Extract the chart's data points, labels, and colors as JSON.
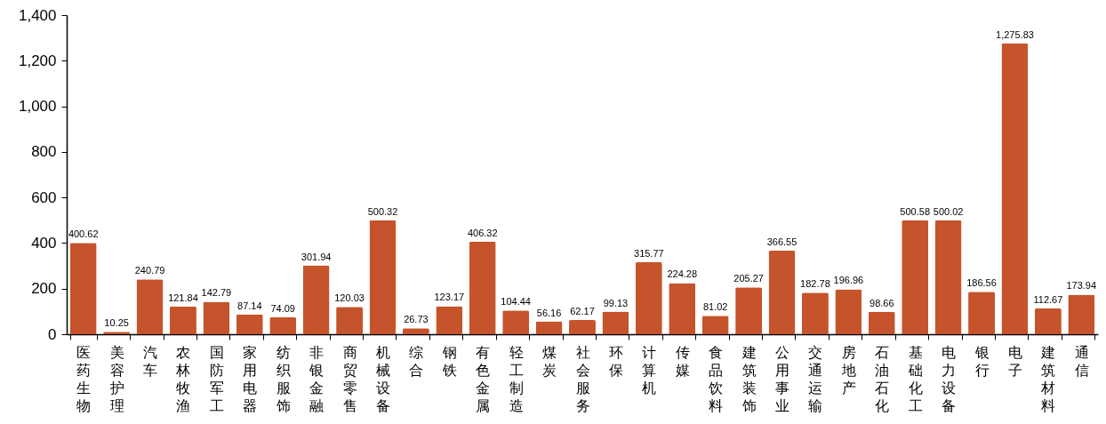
{
  "chart_data": {
    "type": "bar",
    "categories": [
      "医药生物",
      "美容护理",
      "汽车",
      "农林牧渔",
      "国防军工",
      "家用电器",
      "纺织服饰",
      "非银金融",
      "商贸零售",
      "机械设备",
      "综合",
      "钢铁",
      "有色金属",
      "轻工制造",
      "煤炭",
      "社会服务",
      "环保",
      "计算机",
      "传媒",
      "食品饮料",
      "建筑装饰",
      "公用事业",
      "交通运输",
      "房地产",
      "石油石化",
      "基础化工",
      "电力设备",
      "银行",
      "电子",
      "建筑材料",
      "通信"
    ],
    "values": [
      400.62,
      10.25,
      240.79,
      121.84,
      142.79,
      87.14,
      74.09,
      301.94,
      120.03,
      500.32,
      26.73,
      123.17,
      406.32,
      104.44,
      56.16,
      62.17,
      99.13,
      315.77,
      224.28,
      81.02,
      205.27,
      366.55,
      182.78,
      196.96,
      98.66,
      500.58,
      500.02,
      186.56,
      1275.83,
      112.67,
      173.94
    ],
    "value_labels": [
      "400.62",
      "10.25",
      "240.79",
      "121.84",
      "142.79",
      "87.14",
      "74.09",
      "301.94",
      "120.03",
      "500.32",
      "26.73",
      "123.17",
      "406.32",
      "104.44",
      "56.16",
      "62.17",
      "99.13",
      "315.77",
      "224.28",
      "81.02",
      "205.27",
      "366.55",
      "182.78",
      "196.96",
      "98.66",
      "500.58",
      "500.02",
      "186.56",
      "1,275.83",
      "112.67",
      "173.94"
    ],
    "color": "#c5532c",
    "ylim": [
      0,
      1400
    ],
    "yticks": [
      0,
      200,
      400,
      600,
      800,
      {
        "value": 1000,
        "label": "1,000"
      },
      {
        "value": 1200,
        "label": "1,200"
      },
      {
        "value": 1400,
        "label": "1,400"
      }
    ]
  }
}
